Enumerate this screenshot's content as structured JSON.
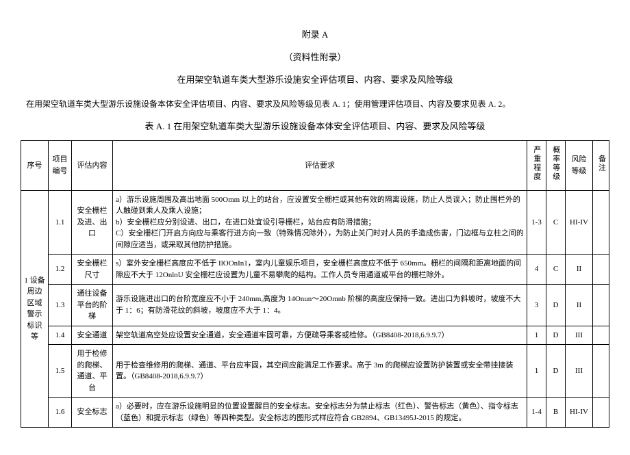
{
  "header": {
    "appendix": "附录 A",
    "sub": "（资料性附录）",
    "title": "在用架空轨道车类大型游乐设施安全评估项目、内容、要求及风险等级",
    "intro": "在用架空轨道车类大型游乐设施设备本体安全评估项目、内容、要求及风险等级见表 A. 1；使用管理评估项目、内容及要求见表 A. 2。",
    "tableCaption": "表 A. 1 在用架空轨道车类大型游乐设施设备本体安全评估项目、内容、要求及风险等级"
  },
  "columns": {
    "seq": "序号",
    "itemNo": "项目编号",
    "item": "评估内容",
    "req": "评估要求",
    "severity": "严重程度",
    "probability": "概率等级",
    "risk": "风险等级",
    "note": "备注"
  },
  "category": "1 设备周边区域警示标识等",
  "rows": [
    {
      "no": "1.1",
      "item": "安全栅栏及进、出口",
      "req": "a）游乐设施周围及高出地面 500Omm 以上的站台，应设置安全栅栏或其他有效的隔离设施，防止人员误入；防止围栏外的人触碰到乘人及乘人设施；\nb）安全栅栏应分别设进、出口，在进口处宜设引导栅栏，站台应有防滑措施；\nC）安全栅栏门开启方向应与乘客行进方向一致（特殊情况除外），为防止关门时对人员的手造成伤害，门边框与立柱之间的间隙应适当，或采取其他防护措施。",
      "sev": "1-3",
      "prob": "C",
      "risk": "HI-IV"
    },
    {
      "no": "1.2",
      "item": "安全栅栏尺寸",
      "req": "s）室外安全栅栏高度应不低于 IlOOnIn1，室内儿童娱乐项目，安全栅栏高度应不低于 650mm。栅栏的间隔和距离地面的间隙应不大于 12OnlnU 安全栅栏应设置为儿童不易攀爬的结构。工作人员专用通道或平台的栅栏除外。",
      "sev": "4",
      "prob": "C",
      "risk": "II"
    },
    {
      "no": "1.3",
      "item": "通往设备平台的阶梯",
      "req": "游乐设施进出口的台阶宽度应不小于 240mm,高度为 14Onun～20Omnb 阶梯的高度应保持一致。进出口为斜坡时，坡度不大于 1：6；有防滑花纹的斜坡，坡度应不大于 1：4。",
      "sev": "3",
      "prob": "D",
      "risk": "II"
    },
    {
      "no": "1.4",
      "item": "安全通道",
      "req": "架空轨道高空处应设置安全通道，安全通道牢固可靠，方便疏导乘客或检修。（GB8408-2018,6.9.9.7）",
      "sev": "1",
      "prob": "D",
      "risk": "III"
    },
    {
      "no": "1.5",
      "item": "用于检修的爬梯、通道、平台",
      "req": "用于检查维修用的爬梯、通道、平台应牢固，其空间应能满足工作要求。高于 3m 的爬梯应设置防护装置或安全带挂接装置。（GB8408-2018,6.9.9.7）",
      "sev": "1",
      "prob": "D",
      "risk": "III"
    },
    {
      "no": "1.6",
      "item": "安全标志",
      "req": "a）必要时，应在游乐设施明显的位置设置醒目的安全标志。安全标志分为禁止标志（红色）、警告标志（黄色）、指令标志（蓝色）和提示标志（绿色）等四种类型。安全标志的图形式样应符合 GB2894、GB13495J-2015 的规定。",
      "sev": "1-4",
      "prob": "B",
      "risk": "HI-IV"
    }
  ]
}
